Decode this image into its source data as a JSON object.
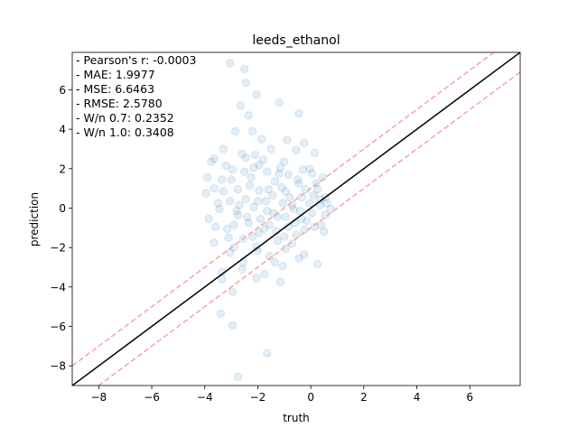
{
  "chart_data": {
    "type": "scatter",
    "title": "leeds_ethanol",
    "xlabel": "truth",
    "ylabel": "prediction",
    "xlim": [
      -9.0,
      7.9
    ],
    "ylim": [
      -9.0,
      7.9
    ],
    "xticks": [
      -8,
      -6,
      -4,
      -2,
      0,
      2,
      4,
      6
    ],
    "yticks": [
      -8,
      -6,
      -4,
      -2,
      0,
      2,
      4,
      6
    ],
    "grid": false,
    "stats": [
      "- Pearson's r: -0.0003",
      "- MAE: 1.9977",
      "- MSE: 6.6463",
      "- RMSE: 2.5780",
      "- W/n 0.7: 0.2352",
      "- W/n 1.0: 0.3408"
    ],
    "reference_lines": [
      {
        "kind": "identity",
        "offset": 0,
        "color": "#000000",
        "style": "solid"
      },
      {
        "kind": "identity",
        "offset": 1.0,
        "color": "#f4a6a0",
        "style": "dashed"
      },
      {
        "kind": "identity",
        "offset": -1.0,
        "color": "#f4a6a0",
        "style": "dashed"
      }
    ],
    "series": [
      {
        "color": "#1f77b4",
        "alpha": 0.12,
        "points": [
          [
            -3.05,
            7.35
          ],
          [
            -2.5,
            7.05
          ],
          [
            -2.45,
            6.35
          ],
          [
            -2.05,
            5.75
          ],
          [
            -2.65,
            5.2
          ],
          [
            -2.35,
            4.7
          ],
          [
            -0.45,
            4.8
          ],
          [
            -1.2,
            5.35
          ],
          [
            -2.2,
            3.9
          ],
          [
            -2.85,
            3.9
          ],
          [
            -1.85,
            3.5
          ],
          [
            -0.9,
            3.45
          ],
          [
            -0.25,
            3.3
          ],
          [
            -1.5,
            3.0
          ],
          [
            -3.3,
            3.0
          ],
          [
            -2.6,
            2.75
          ],
          [
            0.15,
            2.8
          ],
          [
            -0.55,
            2.95
          ],
          [
            -3.65,
            2.5
          ],
          [
            -2.45,
            2.55
          ],
          [
            -1.95,
            2.2
          ],
          [
            -0.05,
            2.0
          ],
          [
            -1.15,
            2.05
          ],
          [
            -2.95,
            1.95
          ],
          [
            -3.75,
            2.35
          ],
          [
            -1.65,
            1.85
          ],
          [
            -0.85,
            1.7
          ],
          [
            0.05,
            1.75
          ],
          [
            -2.25,
            1.55
          ],
          [
            -3.35,
            1.45
          ],
          [
            -0.45,
            1.25
          ],
          [
            -1.35,
            1.35
          ],
          [
            0.45,
            1.55
          ],
          [
            -3.65,
            1.0
          ],
          [
            -2.75,
            0.95
          ],
          [
            -1.95,
            0.9
          ],
          [
            -0.95,
            0.85
          ],
          [
            0.25,
            0.95
          ],
          [
            -1.45,
            0.65
          ],
          [
            -2.45,
            0.45
          ],
          [
            -0.35,
            0.55
          ],
          [
            0.55,
            0.55
          ],
          [
            -3.95,
            0.75
          ],
          [
            -3.05,
            0.35
          ],
          [
            -1.05,
            0.25
          ],
          [
            -0.05,
            0.25
          ],
          [
            0.35,
            0.15
          ],
          [
            -2.15,
            0.05
          ],
          [
            -3.45,
            -0.05
          ],
          [
            -1.65,
            -0.15
          ],
          [
            -0.65,
            -0.05
          ],
          [
            0.05,
            -0.25
          ],
          [
            -2.75,
            -0.35
          ],
          [
            -1.25,
            -0.45
          ],
          [
            -0.35,
            -0.55
          ],
          [
            0.55,
            -0.35
          ],
          [
            -3.85,
            -0.55
          ],
          [
            -2.35,
            -0.75
          ],
          [
            -1.55,
            -0.85
          ],
          [
            -0.85,
            -0.95
          ],
          [
            0.15,
            -0.95
          ],
          [
            -3.15,
            -1.05
          ],
          [
            -1.95,
            -1.25
          ],
          [
            -0.55,
            -1.35
          ],
          [
            -2.55,
            -1.55
          ],
          [
            -1.25,
            -1.65
          ],
          [
            -3.65,
            -1.75
          ],
          [
            -2.05,
            -1.95
          ],
          [
            -0.95,
            -2.05
          ],
          [
            -0.25,
            -2.35
          ],
          [
            -3.05,
            -2.25
          ],
          [
            -1.55,
            -2.45
          ],
          [
            -2.55,
            -2.75
          ],
          [
            -0.45,
            -2.55
          ],
          [
            -1.05,
            -2.95
          ],
          [
            -3.35,
            -3.25
          ],
          [
            -1.75,
            -3.35
          ],
          [
            0.25,
            -2.85
          ],
          [
            -2.05,
            -3.55
          ],
          [
            -1.15,
            -3.75
          ],
          [
            -2.95,
            -4.25
          ],
          [
            -3.4,
            -5.35
          ],
          [
            -2.95,
            -5.95
          ],
          [
            -1.65,
            -7.35
          ],
          [
            -2.75,
            -8.55
          ],
          [
            -3.35,
            -3.6
          ],
          [
            -2.6,
            -3.1
          ],
          [
            -2.1,
            2.7
          ],
          [
            -1.7,
            0.35
          ],
          [
            -1.4,
            -0.25
          ],
          [
            -0.8,
            0.55
          ],
          [
            -0.2,
            0.95
          ],
          [
            0.35,
            0.45
          ],
          [
            0.75,
            -0.05
          ],
          [
            -0.6,
            -0.75
          ],
          [
            -1.9,
            -0.55
          ],
          [
            -2.9,
            -0.85
          ],
          [
            -3.3,
            0.85
          ],
          [
            -2.3,
            1.15
          ],
          [
            -1.1,
            1.05
          ],
          [
            -0.7,
            0.15
          ],
          [
            0.1,
            0.65
          ],
          [
            -0.4,
            -0.15
          ],
          [
            -1.3,
            -1.15
          ],
          [
            -2.2,
            -1.45
          ],
          [
            -2.8,
            -0.15
          ],
          [
            -3.6,
            -0.95
          ],
          [
            -3.0,
            1.45
          ],
          [
            -2.0,
            0.35
          ],
          [
            -1.6,
            0.95
          ],
          [
            -0.95,
            -0.45
          ],
          [
            -0.15,
            -0.65
          ],
          [
            0.4,
            -0.85
          ],
          [
            0.6,
            0.25
          ],
          [
            -0.5,
            1.45
          ],
          [
            -1.2,
            1.75
          ],
          [
            -2.5,
            1.85
          ],
          [
            -3.2,
            2.15
          ],
          [
            -3.9,
            1.55
          ],
          [
            -1.8,
            2.45
          ],
          [
            -1.0,
            2.35
          ],
          [
            -0.3,
            1.95
          ],
          [
            0.2,
            1.25
          ],
          [
            -2.7,
            0.15
          ],
          [
            -2.4,
            -0.45
          ],
          [
            -1.75,
            -1.05
          ],
          [
            -1.0,
            -1.45
          ],
          [
            -0.25,
            -1.1
          ],
          [
            0.5,
            -1.2
          ],
          [
            -2.0,
            -2.15
          ],
          [
            -1.35,
            -2.75
          ],
          [
            -0.7,
            -1.8
          ],
          [
            -3.1,
            -1.5
          ],
          [
            -2.9,
            -2.0
          ],
          [
            -3.5,
            0.25
          ],
          [
            -2.15,
            2.05
          ]
        ]
      }
    ]
  }
}
